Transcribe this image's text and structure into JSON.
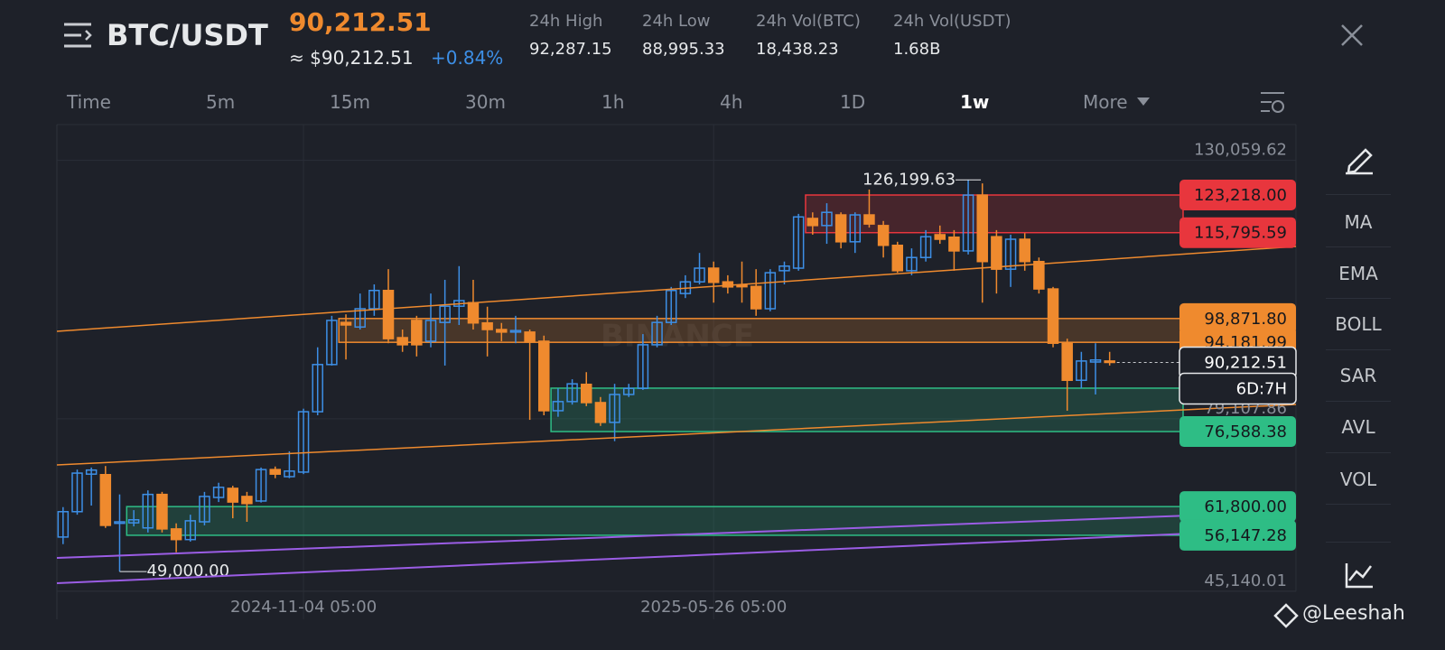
{
  "header": {
    "symbol": "BTC/USDT",
    "price": "90,212.51",
    "price_usd": "≈ $90,212.51",
    "change": "+0.84%",
    "stats": [
      {
        "label": "24h High",
        "value": "92,287.15"
      },
      {
        "label": "24h Low",
        "value": "88,995.33"
      },
      {
        "label": "24h Vol(BTC)",
        "value": "18,438.23"
      },
      {
        "label": "24h Vol(USDT)",
        "value": "1.68B"
      }
    ]
  },
  "tabs": [
    "Time",
    "5m",
    "15m",
    "30m",
    "1h",
    "4h",
    "1D",
    "1w",
    "More"
  ],
  "indicators": [
    "MA",
    "EMA",
    "BOLL",
    "SAR",
    "AVL",
    "VOL"
  ],
  "footer": "@Leeshah",
  "chart_data": {
    "type": "candlestick",
    "watermark": "BINANCE",
    "up_color": "#3d8fe6",
    "down_color": "#ef8a2e",
    "categories": [
      null,
      null,
      null,
      null,
      null,
      null,
      null,
      null,
      null,
      null,
      null,
      null,
      null,
      null,
      null,
      null,
      null,
      "2024-11-04 05:00",
      null,
      null,
      null,
      null,
      null,
      null,
      null,
      null,
      null,
      null,
      null,
      null,
      null,
      null,
      null,
      null,
      null,
      null,
      null,
      null,
      null,
      null,
      null,
      null,
      null,
      null,
      null,
      null,
      "2025-05-26 05:00",
      null,
      null,
      null,
      null,
      null,
      null,
      null,
      null,
      null,
      null,
      null,
      null,
      null,
      null,
      null,
      null,
      null,
      null,
      null,
      null,
      null,
      null,
      null,
      null,
      null,
      null,
      null,
      null
    ],
    "open": [
      55800,
      60800,
      68200,
      68100,
      58500,
      58600,
      57600,
      64200,
      57400,
      55300,
      58800,
      63600,
      65400,
      63800,
      62900,
      69100,
      67700,
      68600,
      80500,
      89800,
      98100,
      97200,
      100800,
      104400,
      95100,
      98500,
      94400,
      98100,
      101300,
      102000,
      98000,
      96700,
      96200,
      96200,
      94400,
      80700,
      82500,
      85900,
      82300,
      78400,
      83900,
      85100,
      93700,
      98100,
      103800,
      106100,
      108800,
      106100,
      105400,
      105200,
      100800,
      108300,
      108800,
      118600,
      117200,
      119300,
      114000,
      119300,
      117200,
      113300,
      108300,
      110900,
      115400,
      114900,
      112200,
      123200,
      115000,
      108600,
      114500,
      110100,
      104700,
      94000,
      86700,
      90300,
      90500
    ],
    "high": [
      61700,
      69100,
      69500,
      69800,
      64200,
      61100,
      65000,
      64700,
      58500,
      60200,
      64700,
      66500,
      65900,
      64700,
      69500,
      69700,
      72700,
      81100,
      93200,
      99400,
      99700,
      103800,
      105600,
      108600,
      96700,
      99400,
      103800,
      106500,
      109200,
      106500,
      101200,
      98000,
      99400,
      96700,
      95500,
      85100,
      86900,
      88300,
      83400,
      86000,
      86000,
      95800,
      99400,
      105100,
      107400,
      111800,
      110100,
      107400,
      110100,
      108600,
      108600,
      110100,
      119500,
      119800,
      121600,
      119800,
      119800,
      124300,
      118100,
      114000,
      112700,
      116300,
      117200,
      116300,
      126199.63,
      125500,
      116300,
      115400,
      115700,
      110900,
      105100,
      94900,
      92300,
      94000,
      92300
    ],
    "low": [
      54400,
      60200,
      62000,
      57600,
      49000,
      57900,
      56700,
      56700,
      52800,
      54900,
      58100,
      62700,
      59500,
      58800,
      62600,
      67400,
      67400,
      68200,
      79800,
      89600,
      90800,
      96700,
      99400,
      94000,
      92300,
      91400,
      93200,
      89600,
      97600,
      96700,
      91400,
      94400,
      94000,
      78900,
      79800,
      79500,
      81900,
      81600,
      77700,
      74700,
      83400,
      84800,
      93200,
      97600,
      102900,
      105600,
      102000,
      103800,
      102000,
      99400,
      100300,
      105600,
      108300,
      115400,
      113600,
      112700,
      111800,
      116800,
      110900,
      107900,
      107400,
      110100,
      113600,
      108300,
      111500,
      102000,
      103800,
      105100,
      108300,
      103800,
      93200,
      80700,
      85100,
      83900,
      89600
    ],
    "close": [
      60800,
      68400,
      69000,
      58100,
      58800,
      59200,
      64200,
      57400,
      55300,
      59000,
      63800,
      65600,
      62700,
      62400,
      69100,
      68200,
      68800,
      80500,
      89800,
      98500,
      97600,
      100800,
      104400,
      94900,
      93700,
      93700,
      98500,
      101300,
      102400,
      98000,
      96700,
      96200,
      96500,
      94400,
      80700,
      82500,
      86000,
      82300,
      78400,
      83900,
      85100,
      93700,
      98100,
      104400,
      106100,
      108800,
      106000,
      105100,
      105200,
      100800,
      107900,
      109200,
      118900,
      117200,
      119800,
      114000,
      119300,
      117500,
      113300,
      108300,
      110900,
      115000,
      114500,
      112200,
      123200,
      110100,
      108600,
      114500,
      110100,
      104700,
      94000,
      86700,
      90500,
      90700,
      90212.51
    ],
    "ylim": [
      45100,
      137100
    ],
    "yticks": [
      {
        "value": 130059.62,
        "label": "130,059.62"
      },
      {
        "value": 79107.86,
        "label": "79,107.86"
      },
      {
        "value": 45140.01,
        "label": "45,140.01"
      }
    ],
    "grid": true,
    "annotations": {
      "high": {
        "value": 126199.63,
        "label": "126,199.63"
      },
      "low": {
        "value": 49000,
        "label": "49,000.00"
      }
    },
    "zones": [
      {
        "top": 123218,
        "bottom": 115795.59,
        "top_label": "123,218.00",
        "bottom_label": "115,795.59",
        "color": "#e8363d",
        "start": 53
      },
      {
        "top": 98871.8,
        "bottom": 94181.99,
        "top_label": "98,871.80",
        "bottom_label": "94,181.99",
        "color": "#ef8a2e",
        "start": 20
      },
      {
        "top": 85147,
        "bottom": 76588.38,
        "bottom_label": "76,588.38",
        "color": "#2ebd85",
        "start": 35
      },
      {
        "top": 61800,
        "bottom": 56147.28,
        "top_label": "61,800.00",
        "bottom_label": "56,147.28",
        "color": "#2ebd85",
        "start": 5
      }
    ],
    "last": {
      "value": 90212.51,
      "label": "90,212.51",
      "countdown": "6D:7H"
    }
  }
}
